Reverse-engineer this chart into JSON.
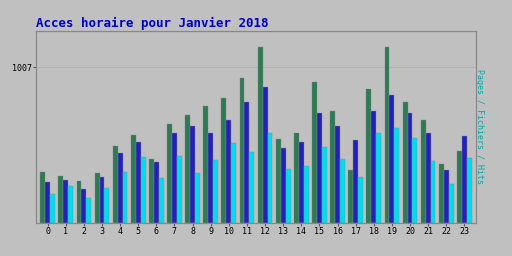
{
  "title": "Acces horaire pour Janvier 2018",
  "ylabel_right": "Pages / Fichiers / Hits",
  "hours": [
    0,
    1,
    2,
    3,
    4,
    5,
    6,
    7,
    8,
    9,
    10,
    11,
    12,
    13,
    14,
    15,
    16,
    17,
    18,
    19,
    20,
    21,
    22,
    23
  ],
  "pages": [
    280,
    255,
    230,
    270,
    420,
    480,
    350,
    540,
    590,
    640,
    680,
    790,
    960,
    460,
    490,
    770,
    610,
    290,
    730,
    960,
    660,
    560,
    320,
    390
  ],
  "fichiers": [
    220,
    235,
    185,
    250,
    380,
    440,
    330,
    490,
    530,
    490,
    560,
    660,
    740,
    410,
    440,
    600,
    530,
    455,
    610,
    700,
    600,
    490,
    290,
    475
  ],
  "hits": [
    155,
    200,
    135,
    190,
    280,
    360,
    245,
    365,
    270,
    345,
    435,
    385,
    490,
    295,
    310,
    415,
    350,
    250,
    490,
    520,
    465,
    340,
    210,
    355
  ],
  "color_pages": "#2d7a54",
  "color_fichiers": "#2222bb",
  "color_hits": "#00ddee",
  "background_color": "#c0c0c0",
  "plot_bg_color": "#c0c0c0",
  "title_color": "#0000cc",
  "ylabel_color": "#00aaaa",
  "tick_color": "#000000",
  "ymax": 1050,
  "ymin": 0,
  "ytick_val": 850,
  "ytick_label": "1007",
  "grid_color": "#aaaaaa",
  "bar_width": 0.27,
  "font_size_title": 9,
  "font_size_axis": 6,
  "font_size_ylabel": 6
}
